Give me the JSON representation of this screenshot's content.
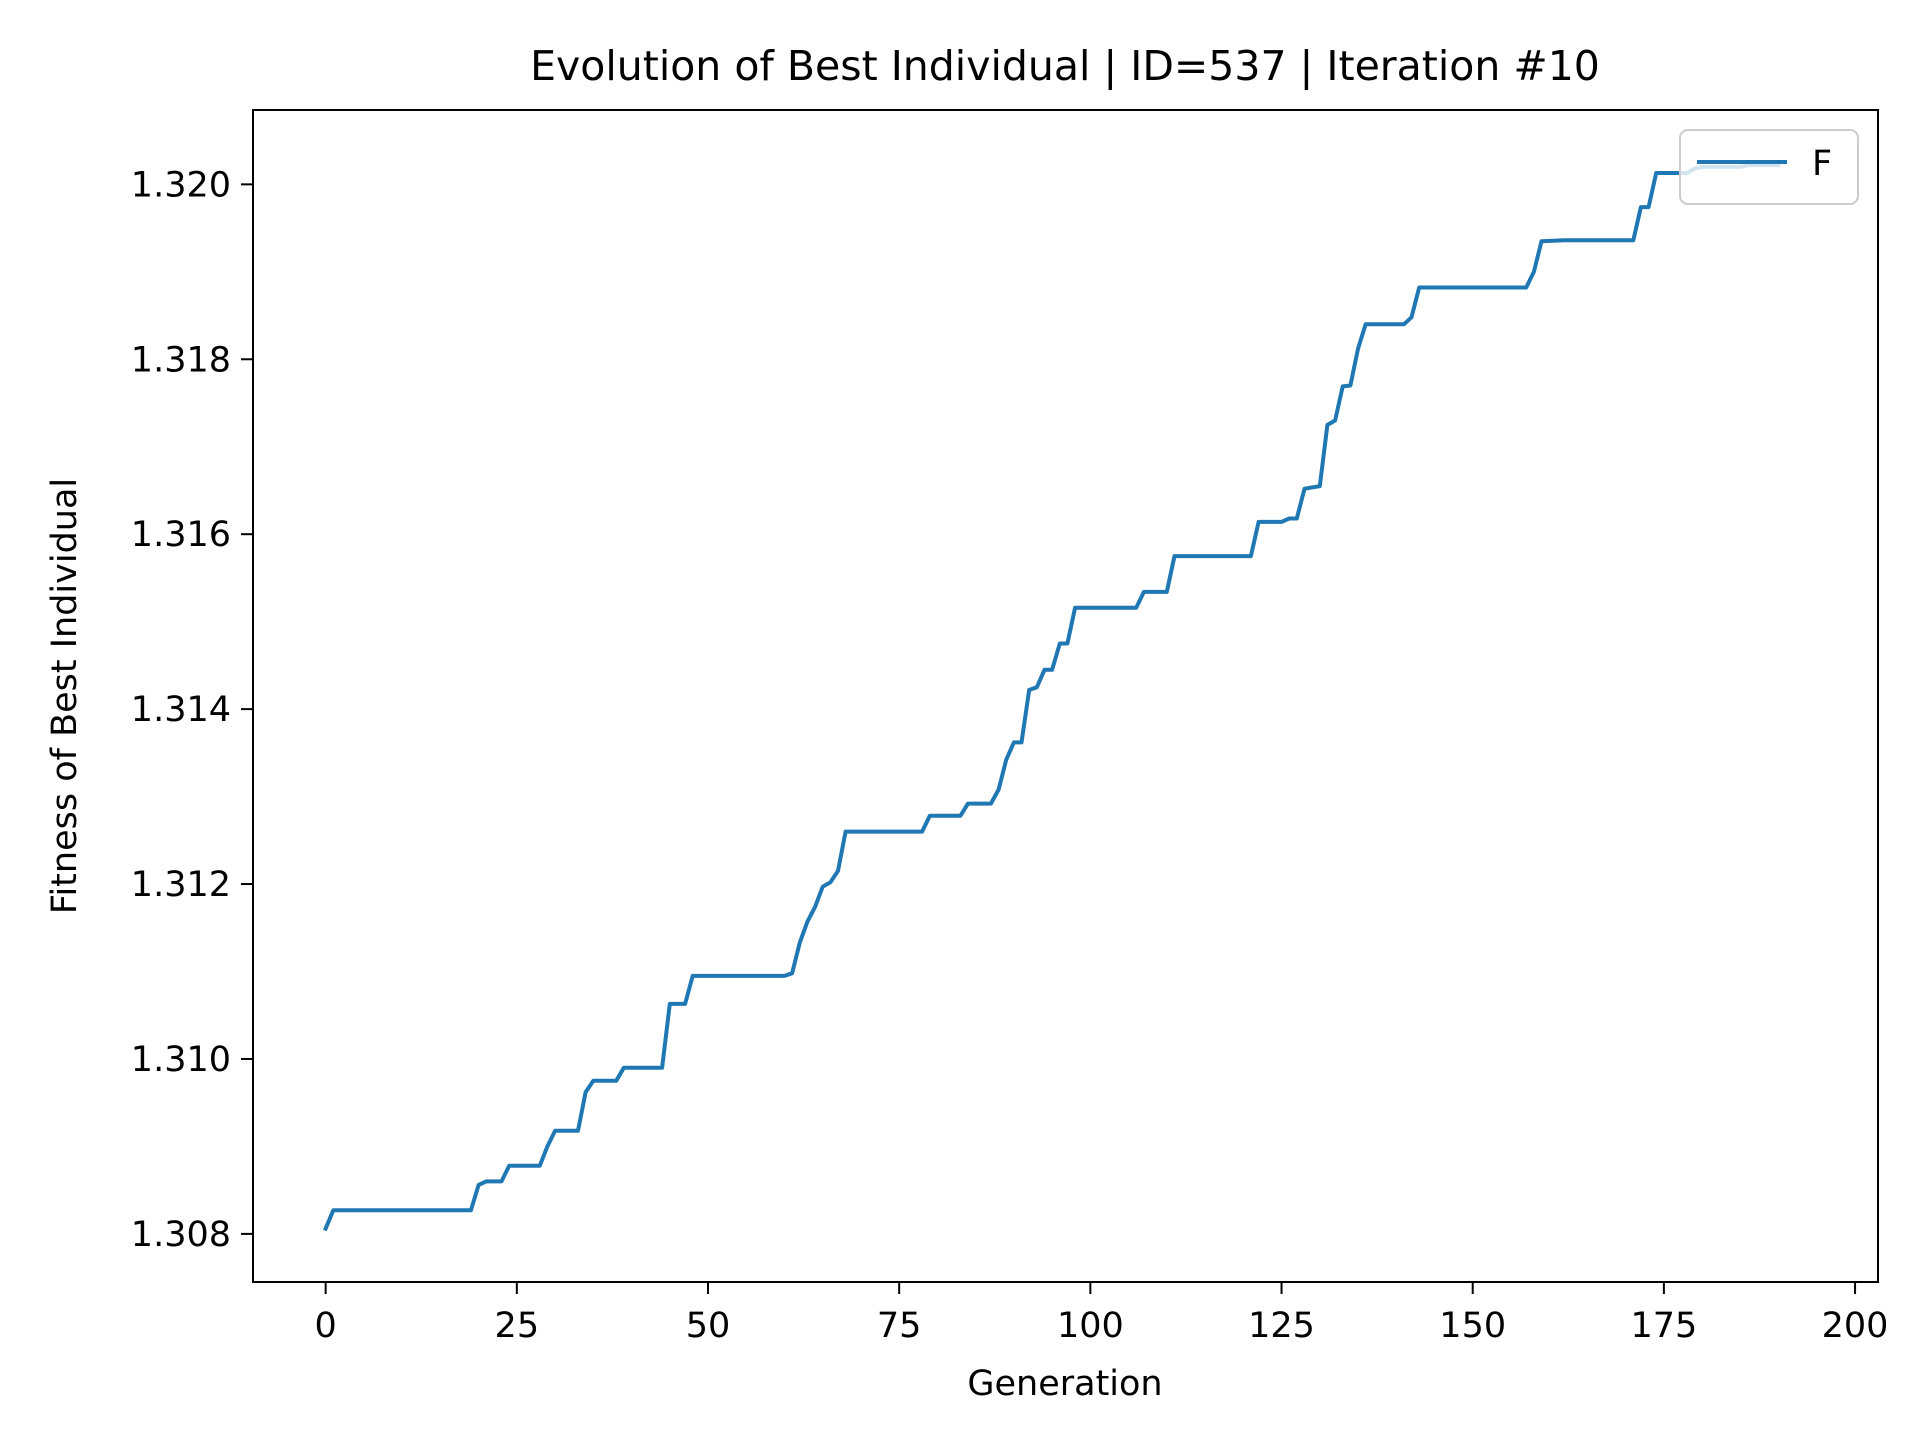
{
  "chart_data": {
    "type": "line",
    "title": "Evolution of Best Individual | ID=537 | Iteration #10",
    "xlabel": "Generation",
    "ylabel": "Fitness of Best Individual",
    "xlim": [
      -9.5,
      203
    ],
    "ylim": [
      1.30745,
      1.32085
    ],
    "xticks": [
      0,
      25,
      50,
      75,
      100,
      125,
      150,
      175,
      200
    ],
    "xtick_labels": [
      "0",
      "25",
      "50",
      "75",
      "100",
      "125",
      "150",
      "175",
      "200"
    ],
    "yticks": [
      1.308,
      1.31,
      1.312,
      1.314,
      1.316,
      1.318,
      1.32
    ],
    "ytick_labels": [
      "1.308",
      "1.310",
      "1.312",
      "1.314",
      "1.316",
      "1.318",
      "1.320"
    ],
    "grid": false,
    "legend": {
      "position": "top-right"
    },
    "series": [
      {
        "name": "F",
        "color": "#1f77b4",
        "x": [
          0,
          1,
          19,
          20,
          21,
          23,
          24,
          28,
          29,
          30,
          33,
          34,
          35,
          38,
          39,
          44,
          45,
          47,
          48,
          60,
          61,
          62,
          63,
          64,
          65,
          66,
          67,
          68,
          78,
          79,
          83,
          84,
          87,
          88,
          89,
          90,
          91,
          92,
          93,
          94,
          95,
          96,
          97,
          98,
          106,
          107,
          110,
          111,
          121,
          122,
          125,
          126,
          127,
          128,
          130,
          131,
          132,
          133,
          134,
          135,
          136,
          141,
          142,
          143,
          157,
          158,
          159,
          162,
          171,
          172,
          173,
          174,
          178,
          179,
          180,
          185,
          186,
          190
        ],
        "y": [
          1.30806,
          1.30827,
          1.30827,
          1.30856,
          1.3086,
          1.3086,
          1.30878,
          1.30878,
          1.309,
          1.30918,
          1.30918,
          1.30962,
          1.30975,
          1.30975,
          1.3099,
          1.3099,
          1.31063,
          1.31063,
          1.31095,
          1.31095,
          1.31098,
          1.31133,
          1.31157,
          1.31174,
          1.31197,
          1.31202,
          1.31215,
          1.3126,
          1.3126,
          1.31278,
          1.31278,
          1.31292,
          1.31292,
          1.31308,
          1.31342,
          1.31362,
          1.31362,
          1.31422,
          1.31425,
          1.31445,
          1.31445,
          1.31475,
          1.31475,
          1.31516,
          1.31516,
          1.31534,
          1.31534,
          1.31575,
          1.31575,
          1.31614,
          1.31614,
          1.31618,
          1.31618,
          1.31652,
          1.31655,
          1.31725,
          1.3173,
          1.31769,
          1.3177,
          1.31812,
          1.3184,
          1.3184,
          1.31848,
          1.31882,
          1.31882,
          1.319,
          1.31935,
          1.31936,
          1.31936,
          1.31974,
          1.31974,
          1.32013,
          1.32013,
          1.32018,
          1.3202,
          1.3202,
          1.32022,
          1.32022
        ]
      }
    ]
  }
}
